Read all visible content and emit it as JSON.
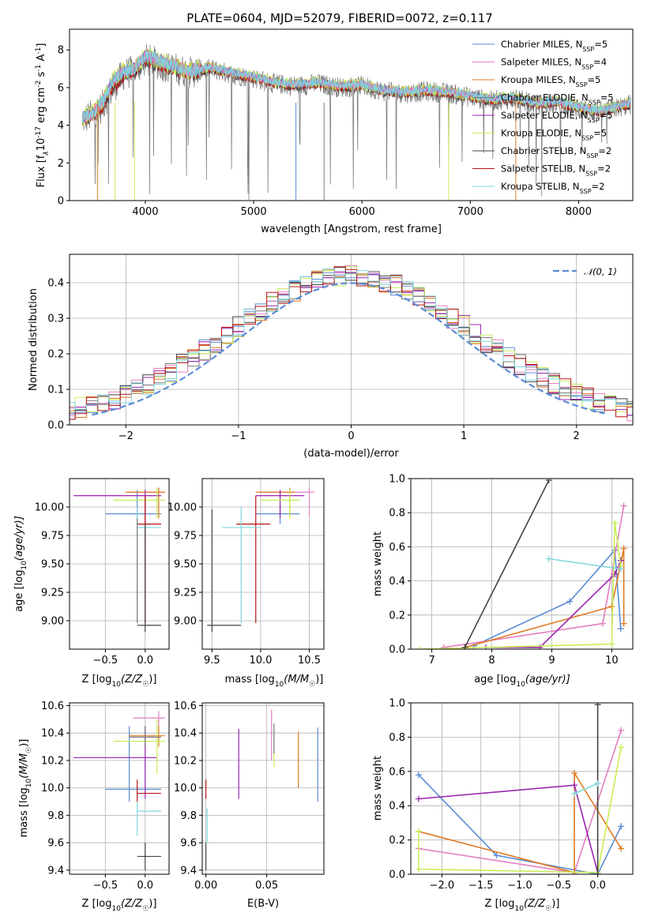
{
  "title": "PLATE=0604, MJD=52079, FIBERID=0072, z=0.117",
  "colors": {
    "Chabrier MILES": "#5b8bd6",
    "Salpeter MILES": "#e37fc0",
    "Kroupa MILES": "#e07a22",
    "Chabrier ELODIE": "#7d7d7d",
    "Salpeter ELODIE": "#9a25b0",
    "Kroupa ELODIE": "#c8ef55",
    "Chabrier STELIB": "#444444",
    "Salpeter STELIB": "#b81414",
    "Kroupa STELIB": "#7fd6dc",
    "gaussian": "#5b8bd6",
    "grid": "#b0b0b0"
  },
  "panels": {
    "spectrum": {
      "xlabel": "wavelength [Angstrom, rest frame]",
      "ylabel_main": "Flux [f",
      "ylabel_unit": "10",
      "ylabel_rest": " erg cm",
      "ylabel_s": " s",
      "ylabel_A": " A",
      "yexp1": "-17",
      "yexp2": "-2",
      "yexp3": "-1",
      "yexp4": "-1",
      "ysub": "λ",
      "xticks": [
        "4000",
        "5000",
        "6000",
        "7000",
        "8000"
      ],
      "yticks": [
        "0",
        "2",
        "4",
        "6",
        "8"
      ],
      "legend": [
        {
          "pre": "Chabrier MILES, N",
          "sub": "SSP",
          "post": "=5"
        },
        {
          "pre": "Salpeter MILES, N",
          "sub": "SSP",
          "post": "=4"
        },
        {
          "pre": "Kroupa MILES, N",
          "sub": "SSP",
          "post": "=5"
        },
        {
          "pre": "Chabrier ELODIE, N",
          "sub": "SSP",
          "post": "=5"
        },
        {
          "pre": "Salpeter ELODIE, N",
          "sub": "SSP",
          "post": "=5"
        },
        {
          "pre": "Kroupa ELODIE, N",
          "sub": "SSP",
          "post": "=5"
        },
        {
          "pre": "Chabrier STELIB, N",
          "sub": "SSP",
          "post": "=2"
        },
        {
          "pre": "Salpeter STELIB, N",
          "sub": "SSP",
          "post": "=2"
        },
        {
          "pre": "Kroupa STELIB, N",
          "sub": "SSP",
          "post": "=2"
        }
      ]
    },
    "hist": {
      "xlabel": "(data-model)/error",
      "ylabel": "Normed distribution",
      "xticks": [
        "−2",
        "−1",
        "0",
        "1",
        "2"
      ],
      "yticks": [
        "0.0",
        "0.1",
        "0.2",
        "0.3",
        "0.4"
      ],
      "legend": "𝒩(0, 1)"
    },
    "age_z": {
      "xlabel_pre": "Z [log",
      "xlabel_mid": "(Z/Z",
      "xlabel_post": ")]",
      "ylabel": "age  [log",
      "ylabel2": "(age/yr)]",
      "xticks": [
        "−0.5",
        "0.0"
      ],
      "yticks": [
        "9.00",
        "9.25",
        "9.50",
        "9.75",
        "10.00"
      ]
    },
    "age_mass": {
      "xlabel_pre": "mass [log",
      "xlabel_mid": "(M/M",
      "xlabel_post": ")]",
      "xticks": [
        "9.5",
        "10.0",
        "10.5"
      ],
      "yticks": [
        "9.00",
        "9.25",
        "9.50",
        "9.75",
        "10.00"
      ]
    },
    "weight_age": {
      "xlabel_pre": "age  [log",
      "xlabel_post": "(age/yr)]",
      "ylabel": "mass weight",
      "xticks": [
        "7",
        "8",
        "9",
        "10"
      ],
      "yticks": [
        "0.0",
        "0.2",
        "0.4",
        "0.6",
        "0.8",
        "1.0"
      ]
    },
    "mass_z": {
      "xlabel_pre": "Z [log",
      "xlabel_mid": "(Z/Z",
      "xlabel_post": ")]",
      "ylabel_pre": "mass [log",
      "ylabel_mid": "(M/M",
      "ylabel_post": ")]",
      "xticks": [
        "−0.5",
        "0.0"
      ],
      "yticks": [
        "9.4",
        "9.6",
        "9.8",
        "10.0",
        "10.2",
        "10.4",
        "10.6"
      ]
    },
    "mass_ebv": {
      "xlabel": "E(B-V)",
      "xticks": [
        "0.00",
        "0.05"
      ],
      "yticks": [
        "9.4",
        "9.6",
        "9.8",
        "10.0",
        "10.2",
        "10.4",
        "10.6"
      ]
    },
    "weight_z": {
      "xlabel_pre": "Z [log",
      "xlabel_mid": "(Z/Z",
      "xlabel_post": ")]",
      "ylabel": "mass weight",
      "xticks": [
        "−2.0",
        "−1.5",
        "−1.0",
        "−0.5",
        "0.0"
      ],
      "yticks": [
        "0.0",
        "0.2",
        "0.4",
        "0.6",
        "0.8",
        "1.0"
      ]
    }
  },
  "chart_data": [
    {
      "type": "line",
      "title": "PLATE=0604, MJD=52079, FIBERID=0072, z=0.117",
      "xlabel": "wavelength [Angstrom, rest frame]",
      "xlim": [
        3300,
        8500
      ],
      "ylim": [
        0,
        9.1
      ],
      "x": [
        3420,
        3500,
        3600,
        3700,
        3800,
        3900,
        4000,
        4200,
        4400,
        4600,
        4800,
        5000,
        5200,
        5400,
        5600,
        5800,
        6000,
        6200,
        6400,
        6600,
        6800,
        7000,
        7200,
        7400,
        7600,
        7800,
        8000,
        8200,
        8480
      ],
      "series": [
        {
          "name": "Kroupa STELIB",
          "values": [
            4.4,
            4.6,
            5.2,
            6.4,
            6.9,
            7.0,
            7.7,
            7.3,
            6.9,
            7.1,
            6.8,
            6.6,
            6.3,
            6.2,
            6.3,
            6.1,
            6.2,
            5.9,
            5.8,
            5.9,
            5.8,
            5.6,
            5.4,
            5.5,
            5.2,
            5.3,
            5.0,
            4.8,
            5.2
          ]
        },
        {
          "name": "Chabrier ELODIE",
          "values": [
            4.3,
            4.5,
            5.0,
            6.0,
            6.7,
            6.9,
            7.5,
            7.1,
            6.8,
            7.0,
            6.7,
            6.5,
            6.2,
            6.1,
            6.2,
            6.0,
            6.1,
            5.8,
            5.7,
            5.8,
            5.7,
            5.5,
            5.3,
            5.4,
            5.1,
            5.2,
            4.9,
            4.7,
            5.1
          ]
        }
      ]
    },
    {
      "type": "line",
      "xlabel": "(data-model)/error",
      "ylabel": "Normed distribution",
      "xlim": [
        -2.5,
        2.5
      ],
      "ylim": [
        0,
        0.48
      ],
      "series": [
        {
          "name": "𝒩(0, 1)",
          "values": "gaussian"
        }
      ]
    },
    {
      "type": "scatter",
      "xlabel": "age  [log10(age/yr)]",
      "ylabel": "mass weight",
      "xlim": [
        6.65,
        10.35
      ],
      "ylim": [
        0,
        1.0
      ],
      "series": [
        {
          "name": "Chabrier MILES",
          "x": [
            7.7,
            9.3,
            10.05,
            10.15
          ],
          "y": [
            0.02,
            0.28,
            0.58,
            0.12
          ]
        },
        {
          "name": "Salpeter MILES",
          "x": [
            7.2,
            9.85,
            10.2
          ],
          "y": [
            0.01,
            0.15,
            0.84
          ]
        },
        {
          "name": "Kroupa MILES",
          "x": [
            7.55,
            10.0,
            10.2,
            10.2
          ],
          "y": [
            0.01,
            0.25,
            0.59,
            0.15
          ]
        },
        {
          "name": "Salpeter ELODIE",
          "x": [
            7.9,
            8.8,
            10.05,
            10.15
          ],
          "y": [
            0.01,
            0.01,
            0.44,
            0.52
          ]
        },
        {
          "name": "Kroupa ELODIE",
          "x": [
            6.8,
            10.0,
            10.05,
            10.15
          ],
          "y": [
            0.0,
            0.03,
            0.74,
            0.49
          ]
        },
        {
          "name": "Chabrier STELIB",
          "x": [
            7.55,
            8.95
          ],
          "y": [
            0.01,
            0.99
          ]
        },
        {
          "name": "Kroupa STELIB",
          "x": [
            8.95,
            10.15
          ],
          "y": [
            0.53,
            0.47
          ]
        }
      ]
    },
    {
      "type": "scatter",
      "xlabel": "Z [log10(Z/Z☉)]",
      "ylabel": "mass weight",
      "xlim": [
        -2.4,
        0.45
      ],
      "ylim": [
        0,
        1.0
      ],
      "series": [
        {
          "name": "Chabrier MILES",
          "x": [
            -2.3,
            -1.3,
            0.0,
            0.3
          ],
          "y": [
            0.58,
            0.11,
            0.0,
            0.28
          ]
        },
        {
          "name": "Salpeter MILES",
          "x": [
            -2.3,
            -0.3,
            0.3
          ],
          "y": [
            0.15,
            0.01,
            0.84
          ]
        },
        {
          "name": "Kroupa MILES",
          "x": [
            -2.3,
            -0.3,
            -0.3,
            0.3
          ],
          "y": [
            0.25,
            0.01,
            0.59,
            0.15
          ]
        },
        {
          "name": "Salpeter ELODIE",
          "x": [
            -2.3,
            -0.3,
            0.0
          ],
          "y": [
            0.44,
            0.52,
            0.01
          ]
        },
        {
          "name": "Kroupa ELODIE",
          "x": [
            -2.3,
            -2.3,
            0.0,
            0.3
          ],
          "y": [
            0.25,
            0.03,
            0.01,
            0.74
          ]
        },
        {
          "name": "Chabrier STELIB",
          "x": [
            0.0,
            0.0
          ],
          "y": [
            0.0,
            0.99
          ]
        },
        {
          "name": "Kroupa STELIB",
          "x": [
            -0.3,
            0.0
          ],
          "y": [
            0.47,
            0.53
          ]
        }
      ]
    }
  ]
}
